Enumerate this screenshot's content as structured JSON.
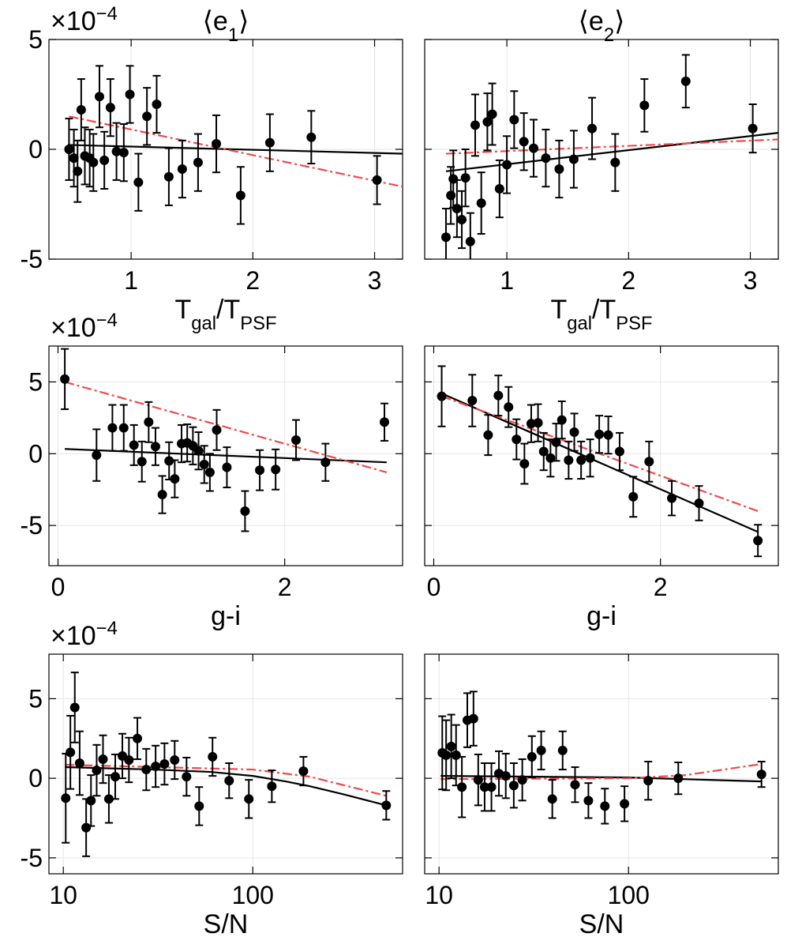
{
  "chart_data": [
    {
      "type": "scatter",
      "title": [
        {
          "text": "⟨e"
        },
        {
          "text": "1",
          "sub": true
        },
        {
          "text": "⟩"
        }
      ],
      "multiplier": [
        {
          "text": "×10"
        },
        {
          "text": "−4",
          "sup": true
        }
      ],
      "xlabel": [
        {
          "text": "T"
        },
        {
          "text": "gal",
          "sub": true
        },
        {
          "text": "/T"
        },
        {
          "text": "PSF",
          "sub": true
        }
      ],
      "xscale": "linear",
      "xlim": [
        0.325,
        3.23
      ],
      "ylim": [
        -5,
        5
      ],
      "xticks": [
        1,
        2,
        3
      ],
      "yticks": [
        -5,
        0,
        5
      ],
      "grid": true,
      "ytick_labels": true,
      "series": [
        {
          "kind": "errorbar",
          "color": "#000000",
          "x": [
            0.49,
            0.53,
            0.56,
            0.59,
            0.62,
            0.66,
            0.69,
            0.74,
            0.78,
            0.83,
            0.88,
            0.94,
            0.99,
            1.06,
            1.13,
            1.21,
            1.31,
            1.42,
            1.55,
            1.7,
            1.9,
            2.14,
            2.48,
            3.02
          ],
          "values": [
            0.0,
            -0.4,
            -1.0,
            1.8,
            -0.3,
            -0.4,
            -0.6,
            2.4,
            -0.5,
            1.9,
            -0.1,
            -0.15,
            2.5,
            -1.5,
            1.5,
            2.05,
            -1.25,
            -0.9,
            -0.6,
            0.25,
            -2.1,
            0.3,
            0.55,
            -1.4
          ],
          "errors": [
            1.4,
            1.3,
            1.4,
            1.4,
            1.3,
            1.3,
            1.3,
            1.4,
            1.3,
            1.3,
            1.3,
            1.3,
            1.3,
            1.3,
            1.3,
            1.3,
            1.3,
            1.3,
            1.3,
            1.3,
            1.3,
            1.3,
            1.2,
            1.1
          ]
        },
        {
          "kind": "line",
          "color": "#000000",
          "style": "solid",
          "x": [
            0.48,
            3.23
          ],
          "values": [
            0.2,
            -0.2
          ]
        },
        {
          "kind": "line",
          "color": "#f04a4a",
          "style": "dashdot",
          "x": [
            0.49,
            3.23
          ],
          "values": [
            1.5,
            -1.7
          ]
        }
      ]
    },
    {
      "type": "scatter",
      "title": [
        {
          "text": "⟨e"
        },
        {
          "text": "2",
          "sub": true
        },
        {
          "text": "⟩"
        }
      ],
      "xlabel": [
        {
          "text": "T"
        },
        {
          "text": "gal",
          "sub": true
        },
        {
          "text": "/T"
        },
        {
          "text": "PSF",
          "sub": true
        }
      ],
      "xscale": "linear",
      "xlim": [
        0.325,
        3.23
      ],
      "ylim": [
        -5,
        5
      ],
      "xticks": [
        1,
        2,
        3
      ],
      "yticks": [
        -5,
        0,
        5
      ],
      "grid": true,
      "ytick_labels": false,
      "series": [
        {
          "kind": "errorbar",
          "color": "#000000",
          "x": [
            0.5,
            0.54,
            0.56,
            0.59,
            0.63,
            0.66,
            0.7,
            0.74,
            0.79,
            0.84,
            0.88,
            0.94,
            1.0,
            1.06,
            1.14,
            1.22,
            1.32,
            1.43,
            1.55,
            1.7,
            1.89,
            2.13,
            2.47,
            3.02
          ],
          "values": [
            -4.0,
            -2.1,
            -1.35,
            -2.7,
            -3.2,
            -1.3,
            -4.2,
            1.1,
            -2.45,
            1.25,
            1.6,
            -1.8,
            -0.7,
            1.35,
            0.35,
            0.05,
            -0.4,
            -0.9,
            -0.45,
            0.95,
            -0.6,
            2.0,
            3.1,
            0.95
          ],
          "errors": [
            1.3,
            1.3,
            1.3,
            1.3,
            1.3,
            1.3,
            1.3,
            1.4,
            1.4,
            1.3,
            1.4,
            1.3,
            1.3,
            1.3,
            1.3,
            1.3,
            1.3,
            1.3,
            1.3,
            1.4,
            1.3,
            1.2,
            1.2,
            1.1
          ]
        },
        {
          "kind": "line",
          "color": "#000000",
          "style": "solid",
          "x": [
            0.5,
            3.23
          ],
          "values": [
            -1.0,
            0.75
          ]
        },
        {
          "kind": "line",
          "color": "#f04a4a",
          "style": "dashdot",
          "x": [
            0.5,
            3.23
          ],
          "values": [
            -0.2,
            0.45
          ]
        }
      ]
    },
    {
      "type": "scatter",
      "multiplier": [
        {
          "text": "×10"
        },
        {
          "text": "−4",
          "sup": true
        }
      ],
      "xlabel": [
        {
          "text": "g-i"
        }
      ],
      "xscale": "linear",
      "xlim": [
        -0.08,
        3.04
      ],
      "ylim": [
        -7.8,
        7.5
      ],
      "xticks": [
        0,
        2
      ],
      "yticks": [
        -5,
        0,
        5
      ],
      "grid": true,
      "ytick_labels": true,
      "series": [
        {
          "kind": "errorbar",
          "color": "#000000",
          "x": [
            0.06,
            0.34,
            0.48,
            0.58,
            0.67,
            0.74,
            0.8,
            0.86,
            0.92,
            0.98,
            1.03,
            1.09,
            1.14,
            1.19,
            1.24,
            1.29,
            1.34,
            1.4,
            1.49,
            1.65,
            1.78,
            1.92,
            2.1,
            2.36,
            2.88
          ],
          "values": [
            5.2,
            -0.1,
            1.8,
            1.8,
            0.6,
            -0.55,
            2.2,
            0.5,
            -2.85,
            -0.5,
            -1.75,
            0.7,
            0.75,
            0.55,
            0.2,
            -0.75,
            -1.3,
            1.65,
            -0.95,
            -4.0,
            -1.15,
            -1.1,
            0.95,
            -0.6,
            2.2
          ],
          "errors": [
            2.1,
            1.8,
            1.6,
            1.6,
            1.4,
            1.4,
            1.4,
            1.3,
            1.3,
            1.3,
            1.3,
            1.3,
            1.3,
            1.3,
            1.3,
            1.3,
            1.3,
            1.4,
            1.4,
            1.4,
            1.4,
            1.4,
            1.4,
            1.3,
            1.3
          ]
        },
        {
          "kind": "line",
          "color": "#000000",
          "style": "solid",
          "x": [
            0.06,
            2.9
          ],
          "values": [
            0.33,
            -0.6
          ]
        },
        {
          "kind": "line",
          "color": "#f04a4a",
          "style": "dashdot",
          "x": [
            0.06,
            2.9
          ],
          "values": [
            5.0,
            -1.3
          ]
        }
      ]
    },
    {
      "type": "scatter",
      "xlabel": [
        {
          "text": "g-i"
        }
      ],
      "xscale": "linear",
      "xlim": [
        -0.08,
        3.04
      ],
      "ylim": [
        -7.8,
        7.5
      ],
      "xticks": [
        0,
        2
      ],
      "yticks": [
        -5,
        0,
        5
      ],
      "grid": true,
      "ytick_labels": false,
      "series": [
        {
          "kind": "errorbar",
          "color": "#000000",
          "x": [
            0.07,
            0.34,
            0.48,
            0.57,
            0.66,
            0.73,
            0.8,
            0.86,
            0.92,
            0.97,
            1.03,
            1.08,
            1.13,
            1.19,
            1.24,
            1.3,
            1.38,
            1.46,
            1.54,
            1.64,
            1.76,
            1.9,
            2.1,
            2.34,
            2.86
          ],
          "values": [
            4.0,
            3.7,
            1.3,
            4.05,
            3.25,
            1.0,
            -0.7,
            2.1,
            2.15,
            0.15,
            -0.3,
            0.8,
            2.35,
            -0.45,
            1.5,
            -0.45,
            -0.3,
            1.35,
            1.3,
            0.15,
            -3.0,
            -0.55,
            -3.1,
            -3.45,
            -6.05
          ],
          "errors": [
            2.1,
            1.8,
            1.4,
            1.4,
            1.4,
            1.4,
            1.4,
            1.3,
            1.3,
            1.3,
            1.3,
            1.3,
            1.3,
            1.3,
            1.3,
            1.3,
            1.3,
            1.3,
            1.3,
            1.3,
            1.4,
            1.4,
            1.2,
            1.2,
            1.1
          ]
        },
        {
          "kind": "line",
          "color": "#000000",
          "style": "solid",
          "x": [
            0.07,
            2.86
          ],
          "values": [
            4.2,
            -5.45
          ]
        },
        {
          "kind": "line",
          "color": "#f04a4a",
          "style": "dashdot",
          "x": [
            0.07,
            2.86
          ],
          "values": [
            4.0,
            -4.0
          ]
        }
      ]
    },
    {
      "type": "scatter",
      "multiplier": [
        {
          "text": "×10"
        },
        {
          "text": "−4",
          "sup": true
        }
      ],
      "xlabel": [
        {
          "text": "S/N"
        }
      ],
      "xscale": "log",
      "xlim": [
        8.4,
        617
      ],
      "ylim": [
        -6.0,
        7.8
      ],
      "xticks": [
        10,
        100
      ],
      "yticks": [
        -5,
        0,
        5
      ],
      "grid": true,
      "ytick_labels": true,
      "series": [
        {
          "kind": "errorbar",
          "color": "#000000",
          "x": [
            10.3,
            10.9,
            11.5,
            12.2,
            13.2,
            14.0,
            15.0,
            16.2,
            17.4,
            18.8,
            20.5,
            22.2,
            24.6,
            27.4,
            30.7,
            34.2,
            38.7,
            44.7,
            52.1,
            61.3,
            75,
            95.3,
            126,
            185,
            506
          ],
          "values": [
            -1.25,
            1.63,
            4.45,
            0.95,
            -3.1,
            -1.4,
            0.5,
            1.2,
            -1.3,
            0.1,
            1.4,
            1.15,
            2.5,
            0.55,
            0.75,
            0.9,
            1.15,
            0.1,
            -1.75,
            1.35,
            -0.15,
            -1.3,
            -0.5,
            0.45,
            -1.7
          ],
          "errors": [
            2.8,
            2.3,
            2.2,
            2.0,
            1.8,
            1.6,
            1.6,
            1.5,
            1.5,
            1.4,
            1.4,
            1.4,
            1.3,
            1.3,
            1.3,
            1.3,
            1.2,
            1.2,
            1.2,
            1.2,
            1.1,
            1.2,
            1.0,
            0.9,
            0.9
          ]
        },
        {
          "kind": "line",
          "color": "#000000",
          "style": "solid",
          "x": [
            10.2,
            30,
            60,
            100,
            150,
            200,
            300,
            506
          ],
          "values": [
            0.7,
            0.55,
            0.4,
            0.15,
            -0.2,
            -0.5,
            -1.0,
            -1.7
          ]
        },
        {
          "kind": "line",
          "color": "#f04a4a",
          "style": "dashdot",
          "x": [
            10.2,
            100,
            200,
            506
          ],
          "values": [
            0.85,
            0.55,
            0.1,
            -1.1
          ]
        }
      ]
    },
    {
      "type": "scatter",
      "xlabel": [
        {
          "text": "S/N"
        }
      ],
      "xscale": "log",
      "xlim": [
        8.4,
        617
      ],
      "ylim": [
        -6.0,
        7.8
      ],
      "xticks": [
        10,
        100
      ],
      "yticks": [
        -5,
        0,
        5
      ],
      "grid": true,
      "ytick_labels": false,
      "series": [
        {
          "kind": "errorbar",
          "color": "#000000",
          "x": [
            10.4,
            10.9,
            11.6,
            12.3,
            13.2,
            14.1,
            15.2,
            16.1,
            17.4,
            18.9,
            20.7,
            22.5,
            24.8,
            27.5,
            30.9,
            34.6,
            39.6,
            44.9,
            52.2,
            61.4,
            75.0,
            95.2,
            127,
            183,
            503
          ],
          "values": [
            1.6,
            1.45,
            2.0,
            1.45,
            -0.55,
            3.65,
            3.75,
            -0.1,
            -0.55,
            -0.55,
            0.3,
            0.15,
            -0.45,
            -0.1,
            1.35,
            1.75,
            -1.3,
            1.75,
            -0.4,
            -1.4,
            -1.75,
            -1.6,
            -0.15,
            0.0,
            0.25
          ],
          "errors": [
            2.3,
            2.2,
            2.0,
            1.9,
            1.9,
            1.7,
            1.7,
            1.6,
            1.5,
            1.5,
            1.4,
            1.4,
            1.4,
            1.3,
            1.3,
            1.2,
            1.2,
            1.2,
            1.1,
            1.1,
            1.1,
            1.1,
            1.2,
            1.0,
            0.8
          ]
        },
        {
          "kind": "line",
          "color": "#000000",
          "style": "solid",
          "x": [
            10.2,
            100,
            506
          ],
          "values": [
            0.15,
            0.05,
            -0.2
          ]
        },
        {
          "kind": "line",
          "color": "#f04a4a",
          "style": "dashdot",
          "x": [
            10.2,
            100,
            200,
            506
          ],
          "values": [
            -0.05,
            0.0,
            0.2,
            0.9
          ]
        }
      ]
    }
  ]
}
